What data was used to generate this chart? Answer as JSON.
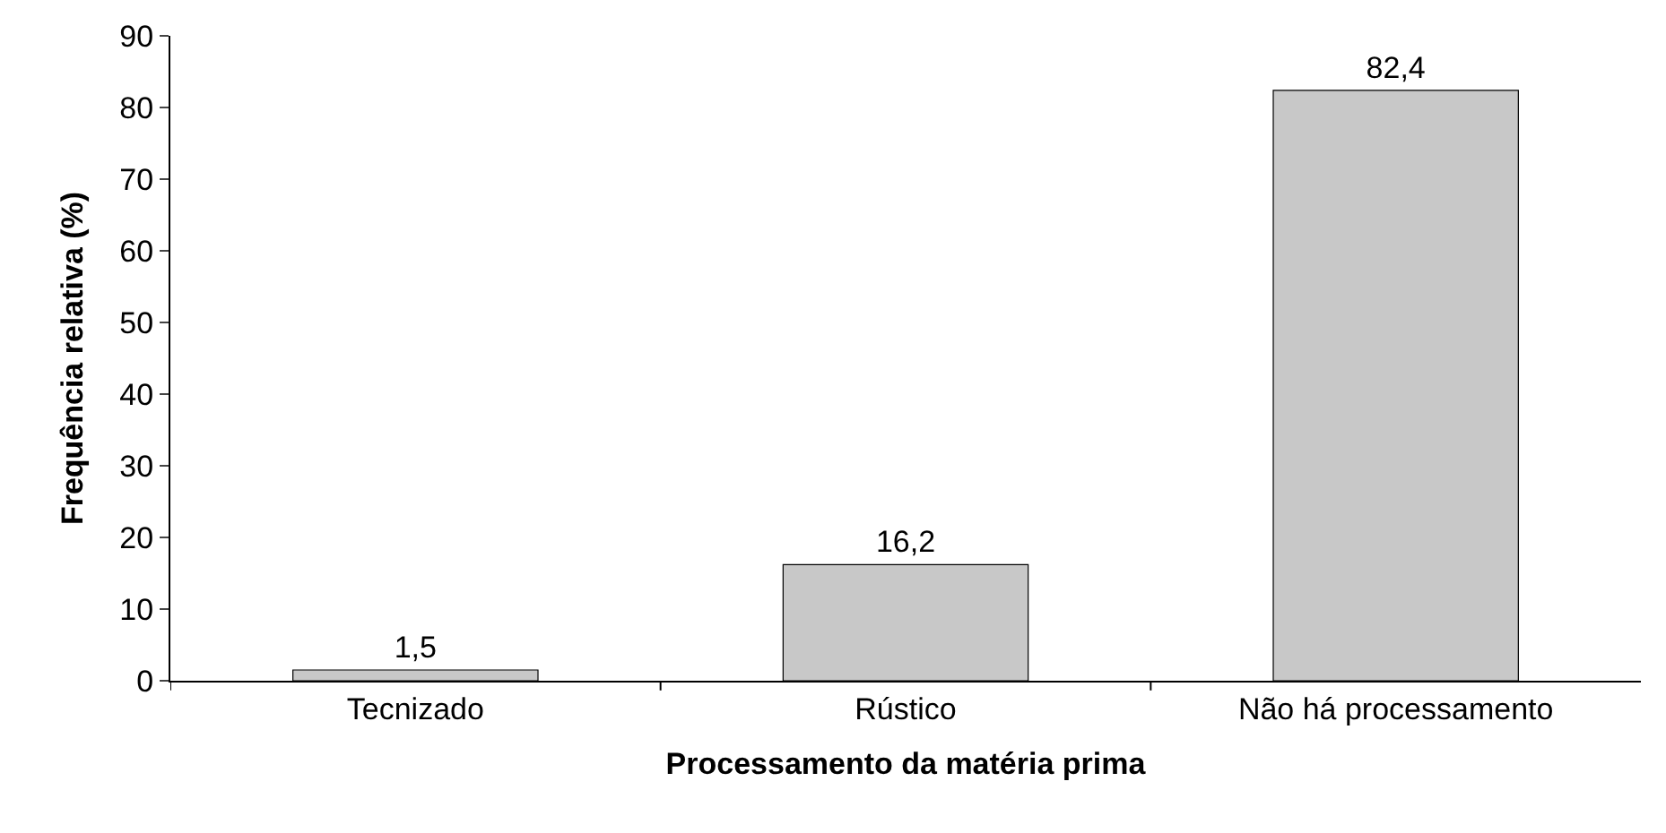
{
  "chart_data": {
    "type": "bar",
    "xlabel": "Processamento da matéria prima",
    "ylabel": "Frequência relativa (%)",
    "categories": [
      "Tecnizado",
      "Rústico",
      "Não há processamento"
    ],
    "values": [
      1.5,
      16.2,
      82.4
    ],
    "value_labels": [
      "1,5",
      "16,2",
      "82,4"
    ],
    "color": "#c8c8c8",
    "ylim": [
      0,
      90
    ],
    "yticks": [
      0,
      10,
      20,
      30,
      40,
      50,
      60,
      70,
      80,
      90
    ]
  }
}
